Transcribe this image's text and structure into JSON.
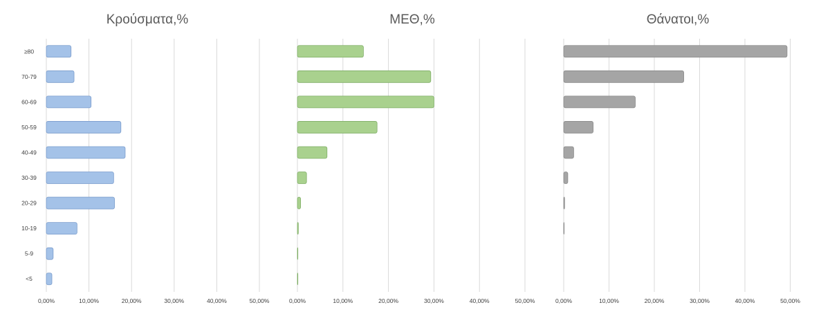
{
  "chart_data": [
    {
      "type": "bar",
      "orientation": "horizontal",
      "title": "Κρούσματα,%",
      "categories": [
        "≥80",
        "70-79",
        "60-69",
        "50-59",
        "40-49",
        "30-39",
        "20-29",
        "10-19",
        "5-9",
        "<5"
      ],
      "values": [
        5.8,
        6.5,
        10.5,
        17.5,
        18.5,
        15.8,
        16.0,
        7.2,
        1.6,
        1.3
      ],
      "xlim": [
        0,
        50
      ],
      "xticks": [
        "0,00%",
        "10,00%",
        "20,00%",
        "30,00%",
        "40,00%",
        "50,00%"
      ],
      "grid": true,
      "color": "#a4c2e8",
      "edge_color": "#7a9ccc"
    },
    {
      "type": "bar",
      "orientation": "horizontal",
      "title": "ΜΕΘ,%",
      "categories": [
        "≥80",
        "70-79",
        "60-69",
        "50-59",
        "40-49",
        "30-39",
        "20-29",
        "10-19",
        "5-9",
        "<5"
      ],
      "values": [
        14.5,
        29.3,
        30.0,
        17.5,
        6.5,
        2.0,
        0.7,
        0.2,
        0.1,
        0.1
      ],
      "xlim": [
        0,
        50
      ],
      "xticks": [
        "0,00%",
        "10,00%",
        "20,00%",
        "30,00%",
        "40,00%",
        "50,00%"
      ],
      "grid": true,
      "color": "#a9d18e",
      "edge_color": "#7fae66"
    },
    {
      "type": "bar",
      "orientation": "horizontal",
      "title": "Θάνατοι,%",
      "categories": [
        "≥80",
        "70-79",
        "60-69",
        "50-59",
        "40-49",
        "30-39",
        "20-29",
        "10-19",
        "5-9",
        "<5"
      ],
      "values": [
        49.3,
        26.5,
        15.8,
        6.5,
        2.2,
        0.9,
        0.2,
        0.1,
        0,
        0
      ],
      "xlim": [
        0,
        50
      ],
      "xticks": [
        "0,00%",
        "10,00%",
        "20,00%",
        "30,00%",
        "40,00%",
        "50,00%"
      ],
      "grid": true,
      "color": "#a5a5a5",
      "edge_color": "#8a8a8a"
    }
  ]
}
